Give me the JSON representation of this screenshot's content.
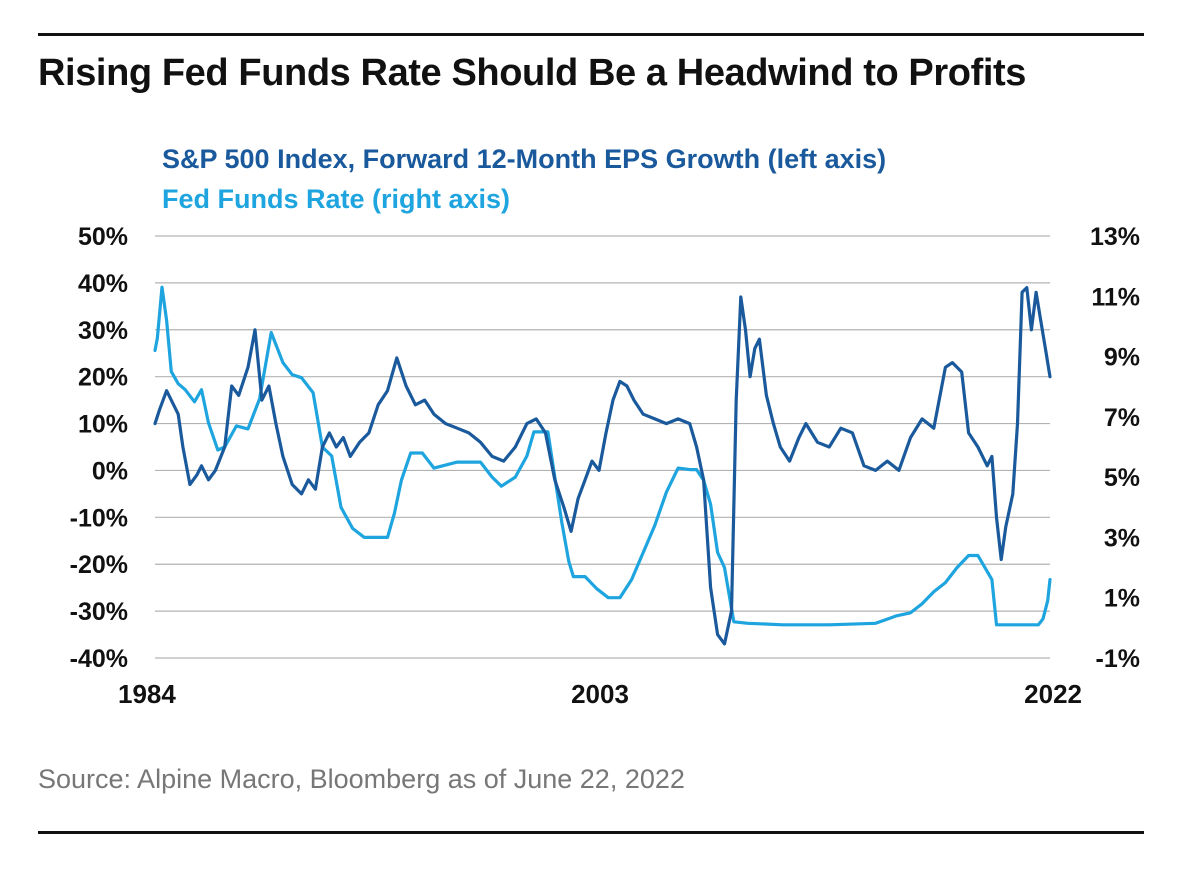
{
  "title": "Rising Fed Funds Rate Should Be a Headwind to Profits",
  "source": "Source: Alpine Macro, Bloomberg as of June 22, 2022",
  "colors": {
    "eps": "#1a5a9c",
    "fed": "#1ea4de",
    "grid": "#b3b3b3",
    "text": "#111111"
  },
  "chart_data": {
    "type": "line",
    "title": "",
    "x_ticks": [
      "1984",
      "2003",
      "2022"
    ],
    "xlim": [
      1984,
      2022.5
    ],
    "left_axis": {
      "ylim": [
        -40,
        50
      ],
      "ticks": [
        50,
        40,
        30,
        20,
        10,
        0,
        -10,
        -20,
        -30,
        -40
      ],
      "tick_labels": [
        "50%",
        "40%",
        "30%",
        "20%",
        "10%",
        "0%",
        "-10%",
        "-20%",
        "-30%",
        "-40%"
      ]
    },
    "right_axis": {
      "ylim": [
        -1,
        13
      ],
      "ticks": [
        13,
        11,
        9,
        7,
        5,
        3,
        1,
        -1
      ],
      "tick_labels": [
        "13%",
        "11%",
        "9%",
        "7%",
        "5%",
        "3%",
        "1%",
        "-1%"
      ]
    },
    "series": [
      {
        "name": "S&P 500 Index, Forward 12-Month EPS Growth (left axis)",
        "axis": "left",
        "x": [
          1984.0,
          1984.2,
          1984.5,
          1984.8,
          1985.0,
          1985.2,
          1985.5,
          1985.8,
          1986.0,
          1986.3,
          1986.6,
          1987.0,
          1987.3,
          1987.6,
          1988.0,
          1988.3,
          1988.6,
          1988.9,
          1989.2,
          1989.5,
          1989.9,
          1990.3,
          1990.6,
          1990.9,
          1991.2,
          1991.5,
          1991.8,
          1992.1,
          1992.4,
          1992.8,
          1993.2,
          1993.6,
          1994.0,
          1994.4,
          1994.8,
          1995.2,
          1995.6,
          1996.0,
          1996.5,
          1997.0,
          1997.5,
          1998.0,
          1998.5,
          1999.0,
          1999.5,
          2000.0,
          2000.4,
          2000.8,
          2001.2,
          2001.6,
          2001.9,
          2002.2,
          2002.5,
          2002.8,
          2003.1,
          2003.4,
          2003.7,
          2004.0,
          2004.3,
          2004.6,
          2005.0,
          2005.5,
          2006.0,
          2006.5,
          2007.0,
          2007.3,
          2007.6,
          2007.9,
          2008.2,
          2008.5,
          2008.8,
          2009.0,
          2009.2,
          2009.4,
          2009.6,
          2009.8,
          2010.0,
          2010.3,
          2010.6,
          2010.9,
          2011.3,
          2011.7,
          2012.0,
          2012.5,
          2013.0,
          2013.5,
          2014.0,
          2014.5,
          2015.0,
          2015.5,
          2016.0,
          2016.5,
          2017.0,
          2017.5,
          2018.0,
          2018.3,
          2018.7,
          2019.0,
          2019.4,
          2019.8,
          2020.0,
          2020.2,
          2020.4,
          2020.6,
          2020.9,
          2021.1,
          2021.3,
          2021.5,
          2021.7,
          2021.9,
          2022.1,
          2022.3,
          2022.5
        ],
        "values": [
          10,
          13,
          17,
          14,
          12,
          5,
          -3,
          -1,
          1,
          -2,
          0,
          5,
          18,
          16,
          22,
          30,
          15,
          18,
          10,
          3,
          -3,
          -5,
          -2,
          -4,
          5,
          8,
          5,
          7,
          3,
          6,
          8,
          14,
          17,
          24,
          18,
          14,
          15,
          12,
          10,
          9,
          8,
          6,
          3,
          2,
          5,
          10,
          11,
          8,
          -2,
          -8,
          -13,
          -6,
          -2,
          2,
          0,
          8,
          15,
          19,
          18,
          15,
          12,
          11,
          10,
          11,
          10,
          5,
          -2,
          -25,
          -35,
          -37,
          -30,
          15,
          37,
          30,
          20,
          26,
          28,
          16,
          10,
          5,
          2,
          7,
          10,
          6,
          5,
          9,
          8,
          1,
          0,
          2,
          0,
          7,
          11,
          9,
          22,
          23,
          21,
          8,
          5,
          1,
          3,
          -10,
          -19,
          -12,
          -5,
          10,
          38,
          39,
          30,
          38,
          32,
          26,
          20
        ]
      },
      {
        "name": "Fed Funds Rate (right axis)",
        "axis": "right",
        "x": [
          1984.0,
          1984.1,
          1984.3,
          1984.5,
          1984.7,
          1985.0,
          1985.3,
          1985.7,
          1986.0,
          1986.3,
          1986.7,
          1987.0,
          1987.5,
          1988.0,
          1988.5,
          1989.0,
          1989.5,
          1989.9,
          1990.3,
          1990.8,
          1991.2,
          1991.6,
          1992.0,
          1992.5,
          1993.0,
          1993.5,
          1994.0,
          1994.3,
          1994.6,
          1995.0,
          1995.5,
          1996.0,
          1997.0,
          1998.0,
          1998.5,
          1998.9,
          1999.5,
          2000.0,
          2000.3,
          2000.6,
          2000.9,
          2001.2,
          2001.5,
          2001.8,
          2002.0,
          2002.5,
          2003.0,
          2003.5,
          2004.0,
          2004.5,
          2005.0,
          2005.5,
          2006.0,
          2006.5,
          2007.0,
          2007.3,
          2007.6,
          2007.9,
          2008.2,
          2008.5,
          2008.9,
          2009.5,
          2011.0,
          2013.0,
          2015.0,
          2015.9,
          2016.5,
          2017.0,
          2017.5,
          2018.0,
          2018.5,
          2019.0,
          2019.4,
          2019.7,
          2020.0,
          2020.2,
          2020.5,
          2021.0,
          2021.5,
          2022.0,
          2022.2,
          2022.4,
          2022.5
        ],
        "values": [
          9.2,
          9.6,
          11.3,
          10.2,
          8.5,
          8.1,
          7.9,
          7.5,
          7.9,
          6.8,
          5.9,
          6.0,
          6.7,
          6.6,
          7.6,
          9.8,
          8.8,
          8.4,
          8.3,
          7.8,
          6.0,
          5.7,
          4.0,
          3.3,
          3.0,
          3.0,
          3.0,
          3.8,
          4.9,
          5.8,
          5.8,
          5.3,
          5.5,
          5.5,
          5.0,
          4.7,
          5.0,
          5.7,
          6.5,
          6.5,
          6.5,
          5.0,
          3.5,
          2.2,
          1.7,
          1.7,
          1.3,
          1.0,
          1.0,
          1.6,
          2.5,
          3.4,
          4.5,
          5.3,
          5.25,
          5.25,
          4.9,
          4.1,
          2.5,
          2.0,
          0.2,
          0.15,
          0.1,
          0.1,
          0.15,
          0.4,
          0.5,
          0.8,
          1.2,
          1.5,
          2.0,
          2.4,
          2.4,
          2.0,
          1.6,
          0.1,
          0.1,
          0.1,
          0.1,
          0.1,
          0.3,
          0.9,
          1.6
        ]
      }
    ]
  }
}
